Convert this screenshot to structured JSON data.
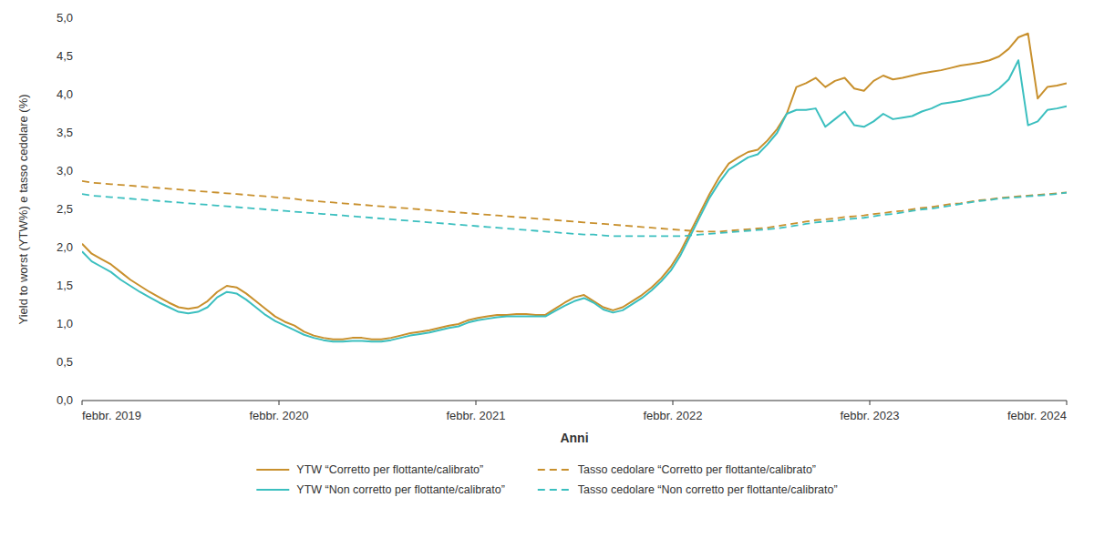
{
  "chart_data": {
    "type": "line",
    "xlabel": "Anni",
    "ylabel": "Yield to worst (YTW%) e tasso cedolare (%)",
    "background": "#FFFFFF",
    "xlim": [
      0,
      60
    ],
    "xticks": [
      {
        "value": 0,
        "label": "febbr. 2019"
      },
      {
        "value": 12,
        "label": "febbr. 2020"
      },
      {
        "value": 24,
        "label": "febbr. 2021"
      },
      {
        "value": 36,
        "label": "febbr. 2022"
      },
      {
        "value": 48,
        "label": "febbr. 2023"
      },
      {
        "value": 60,
        "label": "febbr. 2024"
      }
    ],
    "ylim": [
      0.0,
      5.0
    ],
    "yticks": [
      {
        "value": 0.0,
        "label": "0,0"
      },
      {
        "value": 0.5,
        "label": "0,5"
      },
      {
        "value": 1.0,
        "label": "1,0"
      },
      {
        "value": 1.5,
        "label": "1,5"
      },
      {
        "value": 2.0,
        "label": "2,0"
      },
      {
        "value": 2.5,
        "label": "2,5"
      },
      {
        "value": 3.0,
        "label": "3,0"
      },
      {
        "value": 3.5,
        "label": "3,5"
      },
      {
        "value": 4.0,
        "label": "4,0"
      },
      {
        "value": 4.5,
        "label": "4,5"
      },
      {
        "value": 5.0,
        "label": "5,0"
      }
    ],
    "grid": false,
    "legend": "bottom",
    "series": [
      {
        "name": "YTW “Corretto per flottante/calibrato”",
        "color": "#C8902D",
        "line_style": "solid",
        "values": [
          2.05,
          1.92,
          1.85,
          1.78,
          1.68,
          1.58,
          1.5,
          1.42,
          1.35,
          1.28,
          1.22,
          1.2,
          1.22,
          1.3,
          1.42,
          1.5,
          1.48,
          1.4,
          1.3,
          1.2,
          1.1,
          1.03,
          0.98,
          0.9,
          0.85,
          0.82,
          0.8,
          0.8,
          0.82,
          0.82,
          0.8,
          0.8,
          0.82,
          0.85,
          0.88,
          0.9,
          0.92,
          0.95,
          0.98,
          1.0,
          1.05,
          1.08,
          1.1,
          1.12,
          1.12,
          1.13,
          1.13,
          1.12,
          1.12,
          1.2,
          1.28,
          1.35,
          1.38,
          1.3,
          1.22,
          1.18,
          1.22,
          1.3,
          1.38,
          1.48,
          1.6,
          1.75,
          1.95,
          2.2,
          2.45,
          2.7,
          2.92,
          3.1,
          3.18,
          3.25,
          3.28,
          3.4,
          3.55,
          3.75,
          4.1,
          4.15,
          4.22,
          4.1,
          4.18,
          4.22,
          4.08,
          4.05,
          4.18,
          4.25,
          4.2,
          4.22,
          4.25,
          4.28,
          4.3,
          4.32,
          4.35,
          4.38,
          4.4,
          4.42,
          4.45,
          4.5,
          4.6,
          4.75,
          4.8,
          3.95,
          4.1,
          4.12,
          4.15
        ]
      },
      {
        "name": "YTW “Non corretto per flottante/calibrato”",
        "color": "#3BBFBF",
        "line_style": "solid",
        "values": [
          1.95,
          1.82,
          1.75,
          1.68,
          1.58,
          1.5,
          1.42,
          1.35,
          1.28,
          1.22,
          1.16,
          1.14,
          1.16,
          1.22,
          1.35,
          1.42,
          1.4,
          1.32,
          1.22,
          1.12,
          1.04,
          0.98,
          0.92,
          0.86,
          0.82,
          0.79,
          0.77,
          0.77,
          0.78,
          0.78,
          0.77,
          0.77,
          0.79,
          0.82,
          0.85,
          0.87,
          0.89,
          0.92,
          0.95,
          0.97,
          1.02,
          1.05,
          1.07,
          1.09,
          1.1,
          1.1,
          1.1,
          1.1,
          1.1,
          1.17,
          1.24,
          1.3,
          1.34,
          1.28,
          1.19,
          1.15,
          1.18,
          1.26,
          1.34,
          1.44,
          1.56,
          1.7,
          1.9,
          2.15,
          2.4,
          2.65,
          2.85,
          3.02,
          3.1,
          3.18,
          3.22,
          3.35,
          3.5,
          3.75,
          3.8,
          3.8,
          3.82,
          3.58,
          3.68,
          3.78,
          3.6,
          3.58,
          3.65,
          3.75,
          3.68,
          3.7,
          3.72,
          3.78,
          3.82,
          3.88,
          3.9,
          3.92,
          3.95,
          3.98,
          4.0,
          4.08,
          4.2,
          4.45,
          3.6,
          3.65,
          3.8,
          3.82,
          3.85
        ]
      },
      {
        "name": "Tasso cedolare “Corretto per flottante/calibrato”",
        "color": "#C8902D",
        "line_style": "dashed",
        "values": [
          2.87,
          2.85,
          2.84,
          2.83,
          2.82,
          2.81,
          2.8,
          2.79,
          2.78,
          2.77,
          2.76,
          2.75,
          2.74,
          2.73,
          2.72,
          2.71,
          2.7,
          2.69,
          2.68,
          2.67,
          2.66,
          2.65,
          2.64,
          2.62,
          2.61,
          2.6,
          2.59,
          2.58,
          2.57,
          2.56,
          2.55,
          2.54,
          2.53,
          2.52,
          2.51,
          2.5,
          2.49,
          2.48,
          2.47,
          2.46,
          2.45,
          2.44,
          2.43,
          2.42,
          2.41,
          2.4,
          2.39,
          2.38,
          2.37,
          2.36,
          2.35,
          2.34,
          2.33,
          2.32,
          2.31,
          2.3,
          2.29,
          2.28,
          2.27,
          2.26,
          2.25,
          2.24,
          2.23,
          2.22,
          2.21,
          2.21,
          2.21,
          2.22,
          2.23,
          2.24,
          2.25,
          2.26,
          2.28,
          2.3,
          2.32,
          2.34,
          2.36,
          2.37,
          2.38,
          2.4,
          2.41,
          2.42,
          2.44,
          2.45,
          2.47,
          2.48,
          2.5,
          2.52,
          2.53,
          2.55,
          2.57,
          2.58,
          2.6,
          2.62,
          2.63,
          2.65,
          2.66,
          2.67,
          2.68,
          2.69,
          2.7,
          2.71,
          2.72
        ]
      },
      {
        "name": "Tasso cedolare “Non corretto per flottante/calibrato”",
        "color": "#3BBFBF",
        "line_style": "dashed",
        "values": [
          2.7,
          2.68,
          2.67,
          2.66,
          2.65,
          2.64,
          2.63,
          2.62,
          2.61,
          2.6,
          2.59,
          2.58,
          2.57,
          2.56,
          2.55,
          2.54,
          2.53,
          2.52,
          2.51,
          2.5,
          2.49,
          2.48,
          2.47,
          2.46,
          2.45,
          2.44,
          2.43,
          2.42,
          2.41,
          2.4,
          2.39,
          2.38,
          2.37,
          2.36,
          2.35,
          2.34,
          2.33,
          2.32,
          2.31,
          2.3,
          2.29,
          2.28,
          2.27,
          2.26,
          2.25,
          2.24,
          2.23,
          2.22,
          2.21,
          2.2,
          2.19,
          2.18,
          2.17,
          2.17,
          2.16,
          2.15,
          2.15,
          2.15,
          2.15,
          2.15,
          2.15,
          2.15,
          2.15,
          2.16,
          2.17,
          2.18,
          2.19,
          2.2,
          2.21,
          2.22,
          2.23,
          2.24,
          2.25,
          2.27,
          2.29,
          2.31,
          2.33,
          2.34,
          2.35,
          2.37,
          2.38,
          2.39,
          2.41,
          2.43,
          2.44,
          2.46,
          2.48,
          2.5,
          2.51,
          2.53,
          2.55,
          2.57,
          2.59,
          2.61,
          2.62,
          2.64,
          2.65,
          2.66,
          2.67,
          2.68,
          2.69,
          2.7,
          2.72
        ]
      }
    ]
  }
}
